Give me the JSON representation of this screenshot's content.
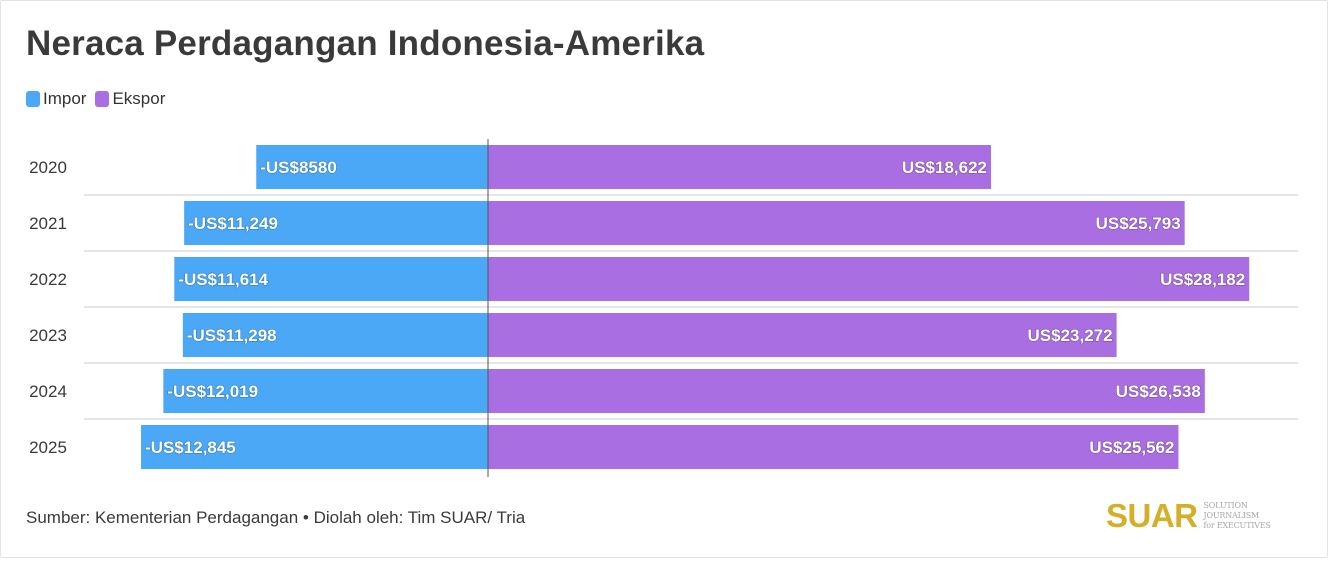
{
  "title": "Neraca Perdagangan Indonesia-Amerika",
  "legend": [
    {
      "label": "Impor",
      "color": "#4aa8f7"
    },
    {
      "label": "Ekspor",
      "color": "#a86ee2"
    }
  ],
  "chart_data": {
    "type": "bar",
    "orientation": "horizontal-diverging",
    "categories": [
      "2020",
      "2021",
      "2022",
      "2023",
      "2024",
      "2025"
    ],
    "series": [
      {
        "name": "Impor",
        "color": "#4aa8f7",
        "values": [
          -8580,
          -11249,
          -11614,
          -11298,
          -12019,
          -12845
        ],
        "labels": [
          "-US$8580",
          "-US$11,249",
          "-US$11,614",
          "-US$11,298",
          "-US$12,019",
          "-US$12,845"
        ]
      },
      {
        "name": "Ekspor",
        "color": "#a86ee2",
        "values": [
          18622,
          25793,
          28182,
          23272,
          26538,
          25562
        ],
        "labels": [
          "US$18,622",
          "US$25,793",
          "US$28,182",
          "US$23,272",
          "US$26,538",
          "US$25,562"
        ]
      }
    ],
    "xlim": [
      -15000,
      31000
    ],
    "legend_position": "top-left",
    "grid": "horizontal row separators"
  },
  "footer": {
    "source": "Sumber: Kementerian Perdagangan • Diolah oleh: Tim SUAR/ Tria"
  },
  "logo": {
    "word": "SUAR",
    "tagline_1": "SOLUTION JOURNALISM",
    "tagline_2": "for EXECUTIVES"
  }
}
